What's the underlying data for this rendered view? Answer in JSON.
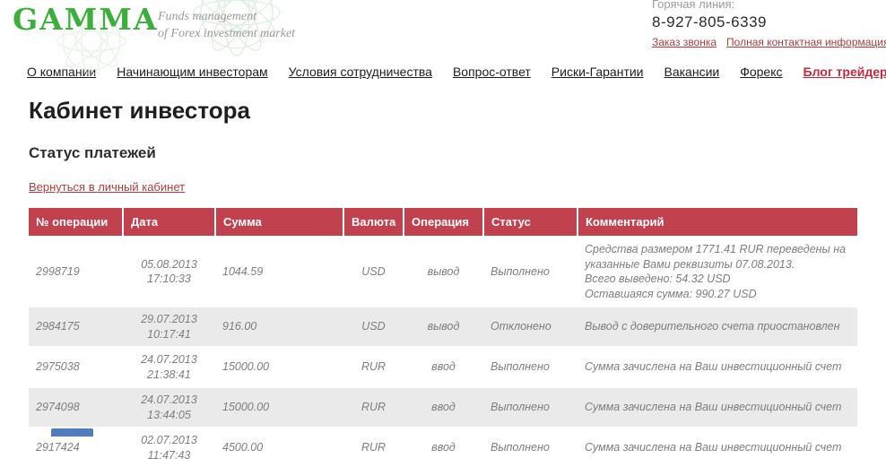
{
  "header": {
    "logo_text": "GAMMA",
    "tagline": "Funds management\nof Forex investment market",
    "hotline_label": "Горячая линия:",
    "phone": "8-927-805-6339",
    "order_call_link": "Заказ звонка",
    "full_contact_link": "Полная контактная информация"
  },
  "nav": {
    "items": [
      {
        "label": "О компании"
      },
      {
        "label": "Начинающим инвесторам"
      },
      {
        "label": "Условия сотрудничества"
      },
      {
        "label": "Вопрос-ответ"
      },
      {
        "label": "Риски-Гарантии"
      },
      {
        "label": "Вакансии"
      },
      {
        "label": "Форекс"
      },
      {
        "label": "Блог трейдеров",
        "accent": true
      }
    ]
  },
  "page": {
    "title": "Кабинет инвестора",
    "subtitle": "Статус платежей",
    "back_link": "Вернуться в личный кабинет"
  },
  "table": {
    "columns": [
      "№ операции",
      "Дата",
      "Сумма",
      "Валюта",
      "Операция",
      "Статус",
      "Комментарий"
    ],
    "rows": [
      {
        "op_id": "2998719",
        "date": "05.08.2013",
        "time": "17:10:33",
        "amount": "1044.59",
        "currency": "USD",
        "operation": "вывод",
        "status": "Выполнено",
        "comment": [
          "Средства размером 1771.41 RUR переведены на указанные Вами реквизиты 07.08.2013.",
          "Всего выведено: 54.32 USD",
          "Оставшаяся сумма: 990.27 USD"
        ]
      },
      {
        "op_id": "2984175",
        "date": "29.07.2013",
        "time": "10:17:41",
        "amount": "916.00",
        "currency": "USD",
        "operation": "вывод",
        "status": "Отклонено",
        "comment": [
          "Вывод с доверительного счета приостановлен"
        ]
      },
      {
        "op_id": "2975038",
        "date": "24.07.2013",
        "time": "21:38:41",
        "amount": "15000.00",
        "currency": "RUR",
        "operation": "ввод",
        "status": "Выполнено",
        "comment": [
          "Сумма зачислена на Ваш инвестиционный счет"
        ]
      },
      {
        "op_id": "2974098",
        "date": "24.07.2013",
        "time": "13:44:05",
        "amount": "15000.00",
        "currency": "RUR",
        "operation": "ввод",
        "status": "Выполнено",
        "comment": [
          "Сумма зачислена на Ваш инвестиционный счет"
        ]
      },
      {
        "op_id": "2917424",
        "date": "02.07.2013",
        "time": "11:47:43",
        "amount": "4500.00",
        "currency": "RUR",
        "operation": "ввод",
        "status": "Выполнено",
        "comment": [
          "Сумма зачислена на Ваш инвестиционный счет"
        ]
      }
    ]
  },
  "colors": {
    "table_header_red": "#c2414e",
    "link_red": "#b23c3c",
    "nav_accent_red": "#c6293f",
    "logo_green": "#3cae3c",
    "row_alt_gray": "#eaeaea",
    "body_text_gray": "#7d7d7d",
    "bottom_bar_blue": "#4f7bbf"
  }
}
